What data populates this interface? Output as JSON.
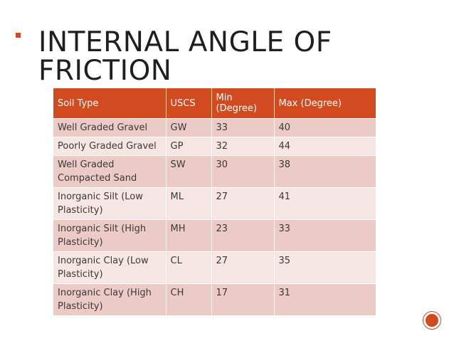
{
  "slide": {
    "title": "INTERNAL ANGLE OF FRICTION",
    "accent_color": "#d24a1f"
  },
  "table": {
    "headers": [
      "Soil Type",
      "USCS",
      "Min (Degree)",
      "Max (Degree)"
    ],
    "rows": [
      [
        "Well Graded Gravel",
        "GW",
        "33",
        "40"
      ],
      [
        "Poorly Graded Gravel",
        "GP",
        "32",
        "44"
      ],
      [
        "Well Graded Compacted Sand",
        "SW",
        "30",
        "38"
      ],
      [
        "Inorganic Silt (Low Plasticity)",
        "ML",
        "27",
        "41"
      ],
      [
        "Inorganic Silt (High Plasticity)",
        "MH",
        "23",
        "33"
      ],
      [
        "Inorganic Clay (Low Plasticity)",
        "CL",
        "27",
        "35"
      ],
      [
        "Inorganic Clay (High Plasticity)",
        "CH",
        "17",
        "31"
      ]
    ]
  },
  "nav": {
    "icon": "circle-nav-icon"
  }
}
